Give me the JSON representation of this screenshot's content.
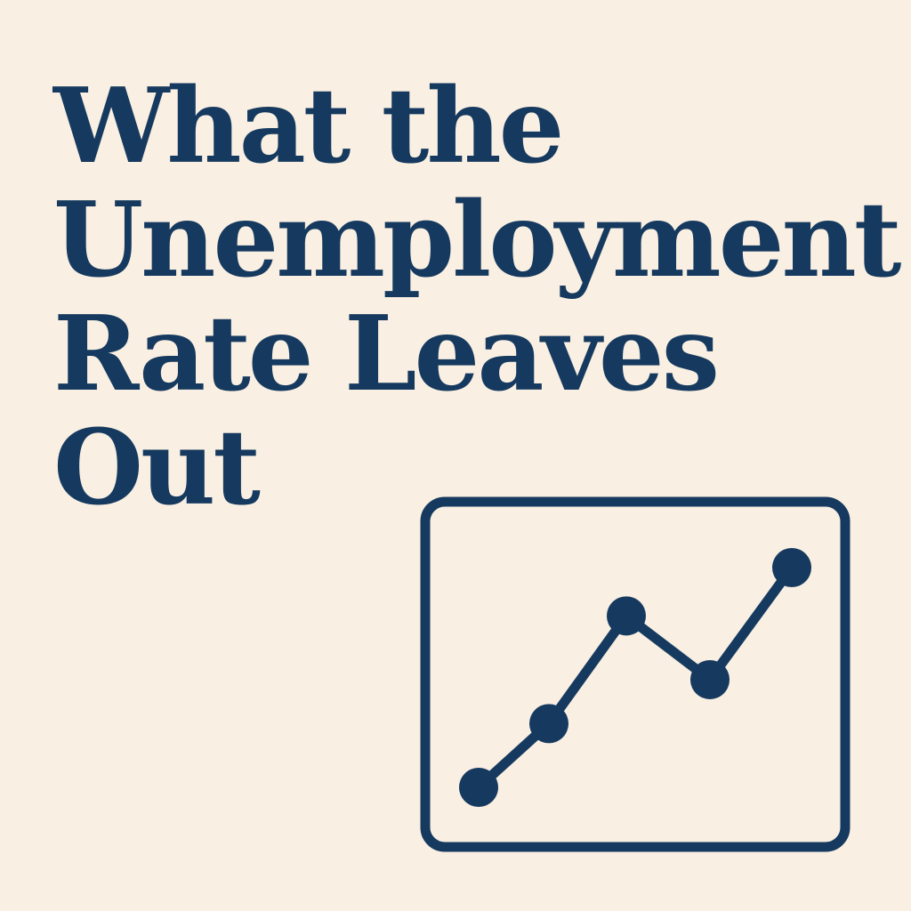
{
  "headline": {
    "lines": [
      "What the",
      "Unemployment",
      "Rate Leaves",
      "Out"
    ]
  },
  "illustration": {
    "icon": "line-chart-icon",
    "trend_levels": [
      0,
      0.29,
      0.78,
      0.49,
      1
    ]
  },
  "colors": {
    "background": "#F9EFE2",
    "ink": "#163A5F"
  }
}
